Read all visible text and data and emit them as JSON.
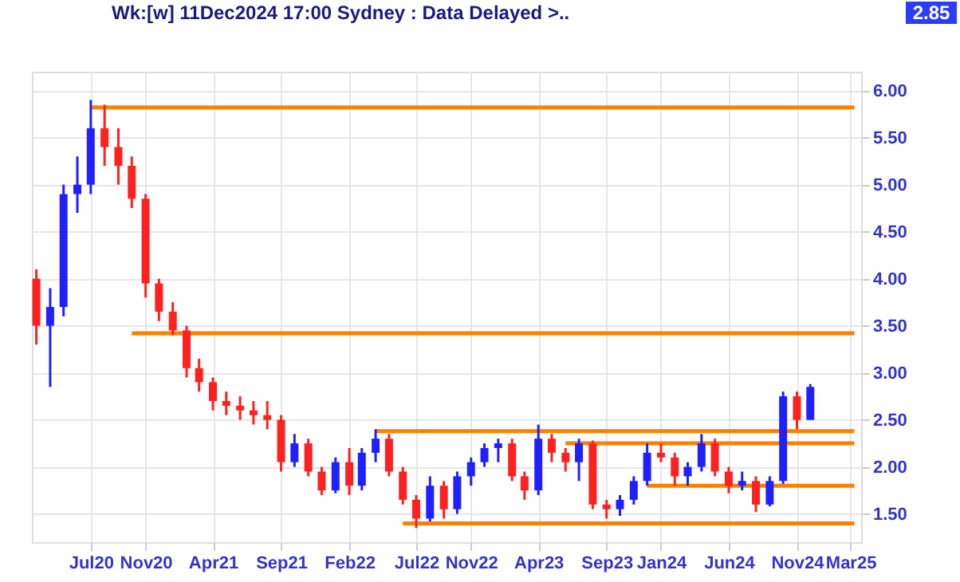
{
  "chart_data": {
    "type": "candlestick",
    "title": "Wk:[w]  11Dec2024 17:00 Sydney : Data Delayed >..",
    "annotations": [
      "2.85"
    ],
    "x": [
      "2020-03-01",
      "2020-04-01",
      "2020-05-01",
      "2020-06-01",
      "2020-07-01",
      "2020-08-01",
      "2020-09-01",
      "2020-10-01",
      "2020-11-01",
      "2020-12-01",
      "2021-01-01",
      "2021-02-01",
      "2021-03-01",
      "2021-04-01",
      "2021-05-01",
      "2021-06-01",
      "2021-07-01",
      "2021-08-01",
      "2021-09-01",
      "2021-10-01",
      "2021-11-01",
      "2021-12-01",
      "2022-01-01",
      "2022-02-01",
      "2022-03-01",
      "2022-04-01",
      "2022-05-01",
      "2022-06-01",
      "2022-07-01",
      "2022-08-01",
      "2022-09-01",
      "2022-10-01",
      "2022-11-01",
      "2022-12-01",
      "2023-01-01",
      "2023-02-01",
      "2023-03-01",
      "2023-04-01",
      "2023-05-01",
      "2023-06-01",
      "2023-07-01",
      "2023-08-01",
      "2023-09-01",
      "2023-10-01",
      "2023-11-01",
      "2023-12-01",
      "2024-01-01",
      "2024-02-01",
      "2024-03-01",
      "2024-04-01",
      "2024-05-01",
      "2024-06-01",
      "2024-07-01",
      "2024-08-01",
      "2024-09-01",
      "2024-10-01",
      "2024-11-01",
      "2024-12-01"
    ],
    "ohlc": [
      [
        4.0,
        4.1,
        3.3,
        3.5
      ],
      [
        3.5,
        3.9,
        2.85,
        3.7
      ],
      [
        3.7,
        5.0,
        3.6,
        4.9
      ],
      [
        4.9,
        5.3,
        4.7,
        5.0
      ],
      [
        5.0,
        5.9,
        4.9,
        5.6
      ],
      [
        5.6,
        5.85,
        5.2,
        5.4
      ],
      [
        5.4,
        5.6,
        5.0,
        5.2
      ],
      [
        5.2,
        5.3,
        4.75,
        4.85
      ],
      [
        4.85,
        4.9,
        3.8,
        3.95
      ],
      [
        3.95,
        4.0,
        3.55,
        3.65
      ],
      [
        3.65,
        3.75,
        3.4,
        3.45
      ],
      [
        3.45,
        3.5,
        2.95,
        3.05
      ],
      [
        3.05,
        3.15,
        2.8,
        2.9
      ],
      [
        2.9,
        2.95,
        2.6,
        2.7
      ],
      [
        2.7,
        2.8,
        2.55,
        2.65
      ],
      [
        2.65,
        2.75,
        2.5,
        2.6
      ],
      [
        2.6,
        2.7,
        2.45,
        2.55
      ],
      [
        2.55,
        2.7,
        2.4,
        2.5
      ],
      [
        2.5,
        2.55,
        1.95,
        2.05
      ],
      [
        2.05,
        2.35,
        2.0,
        2.25
      ],
      [
        2.25,
        2.3,
        1.9,
        1.95
      ],
      [
        1.95,
        2.0,
        1.7,
        1.75
      ],
      [
        1.75,
        2.1,
        1.72,
        2.05
      ],
      [
        2.05,
        2.2,
        1.7,
        1.8
      ],
      [
        1.8,
        2.2,
        1.75,
        2.15
      ],
      [
        2.15,
        2.4,
        2.05,
        2.3
      ],
      [
        2.3,
        2.35,
        1.9,
        1.95
      ],
      [
        1.95,
        2.0,
        1.6,
        1.65
      ],
      [
        1.65,
        1.7,
        1.35,
        1.45
      ],
      [
        1.45,
        1.9,
        1.42,
        1.8
      ],
      [
        1.8,
        1.85,
        1.45,
        1.55
      ],
      [
        1.55,
        1.95,
        1.5,
        1.9
      ],
      [
        1.9,
        2.1,
        1.8,
        2.05
      ],
      [
        2.05,
        2.25,
        2.0,
        2.2
      ],
      [
        2.2,
        2.3,
        2.05,
        2.25
      ],
      [
        2.25,
        2.3,
        1.85,
        1.9
      ],
      [
        1.9,
        1.95,
        1.65,
        1.75
      ],
      [
        1.75,
        2.45,
        1.7,
        2.3
      ],
      [
        2.3,
        2.35,
        2.05,
        2.15
      ],
      [
        2.15,
        2.2,
        1.95,
        2.05
      ],
      [
        2.05,
        2.3,
        1.85,
        2.25
      ],
      [
        2.25,
        2.28,
        1.55,
        1.6
      ],
      [
        1.6,
        1.65,
        1.45,
        1.55
      ],
      [
        1.55,
        1.7,
        1.48,
        1.65
      ],
      [
        1.65,
        1.9,
        1.6,
        1.85
      ],
      [
        1.85,
        2.25,
        1.8,
        2.15
      ],
      [
        2.15,
        2.25,
        2.05,
        2.1
      ],
      [
        2.1,
        2.15,
        1.8,
        1.9
      ],
      [
        1.9,
        2.05,
        1.8,
        2.0
      ],
      [
        2.0,
        2.35,
        1.95,
        2.25
      ],
      [
        2.25,
        2.3,
        1.9,
        1.95
      ],
      [
        1.95,
        2.0,
        1.72,
        1.8
      ],
      [
        1.8,
        1.95,
        1.75,
        1.85
      ],
      [
        1.85,
        1.9,
        1.52,
        1.6
      ],
      [
        1.6,
        1.9,
        1.58,
        1.85
      ],
      [
        1.85,
        2.8,
        1.82,
        2.75
      ],
      [
        2.75,
        2.8,
        2.4,
        2.5
      ],
      [
        2.5,
        2.88,
        2.5,
        2.85
      ]
    ],
    "colors": [
      "#ff2020",
      "#2020ff",
      "#2020ff",
      "#2020ff",
      "#2020ff",
      "#ff2020",
      "#ff2020",
      "#ff2020",
      "#ff2020",
      "#ff2020",
      "#ff2020",
      "#ff2020",
      "#ff2020",
      "#ff2020",
      "#ff2020",
      "#ff2020",
      "#ff2020",
      "#ff2020",
      "#ff2020",
      "#2020ff",
      "#ff2020",
      "#ff2020",
      "#2020ff",
      "#ff2020",
      "#2020ff",
      "#2020ff",
      "#ff2020",
      "#ff2020",
      "#ff2020",
      "#2020ff",
      "#ff2020",
      "#2020ff",
      "#2020ff",
      "#2020ff",
      "#2020ff",
      "#ff2020",
      "#ff2020",
      "#2020ff",
      "#ff2020",
      "#ff2020",
      "#2020ff",
      "#ff2020",
      "#ff2020",
      "#2020ff",
      "#2020ff",
      "#2020ff",
      "#ff2020",
      "#ff2020",
      "#2020ff",
      "#2020ff",
      "#ff2020",
      "#ff2020",
      "#2020ff",
      "#ff2020",
      "#2020ff",
      "#2020ff",
      "#ff2020",
      "#2020ff"
    ],
    "series": [
      {
        "type": "line",
        "color": "#ff8000",
        "x": [
          "2020-07-01",
          "2025-03-10"
        ],
        "values": [
          5.82,
          5.82
        ]
      },
      {
        "type": "line",
        "color": "#ff8000",
        "x": [
          "2020-10-01",
          "2025-03-10"
        ],
        "values": [
          3.42,
          3.42
        ]
      },
      {
        "type": "line",
        "color": "#ff8000",
        "x": [
          "2022-04-01",
          "2025-03-10"
        ],
        "values": [
          2.38,
          2.38
        ]
      },
      {
        "type": "line",
        "color": "#ff8000",
        "x": [
          "2023-06-01",
          "2025-03-10"
        ],
        "values": [
          2.25,
          2.25
        ]
      },
      {
        "type": "line",
        "color": "#ff8000",
        "x": [
          "2023-12-01",
          "2025-03-10"
        ],
        "values": [
          1.8,
          1.8
        ]
      },
      {
        "type": "line",
        "color": "#ff8000",
        "x": [
          "2022-06-01",
          "2025-03-10"
        ],
        "values": [
          1.4,
          1.4
        ]
      }
    ],
    "xlim": [
      "2020-02-20",
      "2025-03-25"
    ],
    "xticks": [
      {
        "value": "2020-07-01",
        "label": "Jul20"
      },
      {
        "value": "2020-11-01",
        "label": "Nov20"
      },
      {
        "value": "2021-04-01",
        "label": "Apr21"
      },
      {
        "value": "2021-09-01",
        "label": "Sep21"
      },
      {
        "value": "2022-02-01",
        "label": "Feb22"
      },
      {
        "value": "2022-07-01",
        "label": "Jul22"
      },
      {
        "value": "2022-11-01",
        "label": "Nov22"
      },
      {
        "value": "2023-04-01",
        "label": "Apr23"
      },
      {
        "value": "2023-09-01",
        "label": "Sep23"
      },
      {
        "value": "2024-01-01",
        "label": "Jan24"
      },
      {
        "value": "2024-06-01",
        "label": "Jun24"
      },
      {
        "value": "2024-11-01",
        "label": "Nov24"
      },
      {
        "value": "2025-03-01",
        "label": "Mar25"
      }
    ],
    "ylim": [
      1.2,
      6.2
    ],
    "yticks": [
      {
        "value": 1.5,
        "label": "1.50"
      },
      {
        "value": 2.0,
        "label": "2.00"
      },
      {
        "value": 2.5,
        "label": "2.50"
      },
      {
        "value": 3.0,
        "label": "3.00"
      },
      {
        "value": 3.5,
        "label": "3.50"
      },
      {
        "value": 4.0,
        "label": "4.00"
      },
      {
        "value": 4.5,
        "label": "4.50"
      },
      {
        "value": 5.0,
        "label": "5.00"
      },
      {
        "value": 5.5,
        "label": "5.50"
      },
      {
        "value": 6.0,
        "label": "6.00"
      }
    ],
    "grid": true
  }
}
